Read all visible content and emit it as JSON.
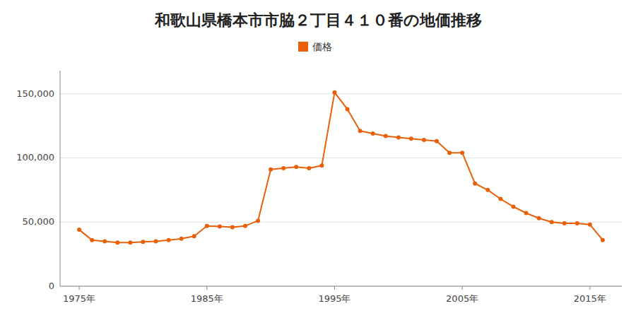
{
  "chart_data": {
    "type": "line",
    "title": "和歌山県橋本市市脇２丁目４１０番の地価推移",
    "x": [
      1975,
      1976,
      1977,
      1978,
      1979,
      1980,
      1981,
      1982,
      1983,
      1984,
      1985,
      1986,
      1987,
      1988,
      1989,
      1990,
      1991,
      1992,
      1993,
      1994,
      1995,
      1996,
      1997,
      1998,
      1999,
      2000,
      2001,
      2002,
      2003,
      2004,
      2005,
      2006,
      2007,
      2008,
      2009,
      2010,
      2011,
      2012,
      2013,
      2014,
      2015,
      2016
    ],
    "series": [
      {
        "name": "価格",
        "color": "#e8600a",
        "marker": "circle",
        "values": [
          44000,
          36000,
          35000,
          34000,
          34000,
          34500,
          35000,
          36000,
          37000,
          39000,
          47000,
          46500,
          46000,
          47000,
          51000,
          91000,
          92000,
          93000,
          92000,
          94000,
          151000,
          138000,
          121000,
          119000,
          117000,
          116000,
          115000,
          114000,
          113000,
          104000,
          104000,
          80000,
          75000,
          68000,
          62000,
          57000,
          53000,
          50000,
          49000,
          49000,
          48000,
          36000
        ]
      }
    ],
    "xlim": [
      1973.5,
      2017.5
    ],
    "xticks": [
      {
        "value": 1975,
        "label": "1975年"
      },
      {
        "value": 1985,
        "label": "1985年"
      },
      {
        "value": 1995,
        "label": "1995年"
      },
      {
        "value": 2005,
        "label": "2005年"
      },
      {
        "value": 2015,
        "label": "2015年"
      }
    ],
    "ylim": [
      0,
      168000
    ],
    "yticks": [
      0,
      {
        "value": 50000,
        "label": "50,000"
      },
      {
        "value": 100000,
        "label": "100,000"
      },
      {
        "value": 150000,
        "label": "150,000"
      }
    ],
    "grid": true,
    "legend": "top"
  }
}
